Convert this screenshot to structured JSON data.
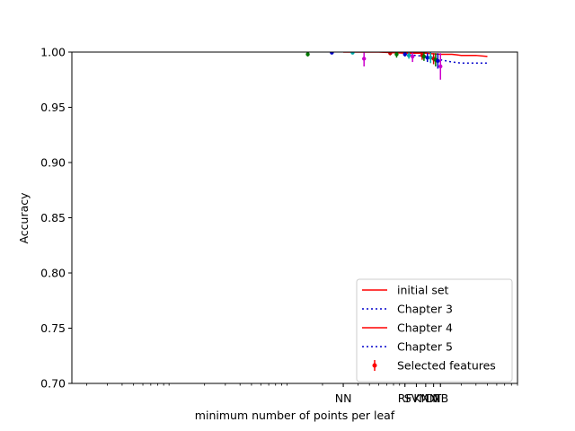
{
  "chart_data": {
    "type": "scatter",
    "title": "",
    "xlabel": "minimum number of points per leaf",
    "ylabel": "Accuracy",
    "x_scale": "log",
    "xlim": [
      0.0015,
      9
    ],
    "ylim": [
      0.7,
      1.0
    ],
    "y_ticks": [
      0.7,
      0.75,
      0.8,
      0.85,
      0.9,
      0.95,
      1.0
    ],
    "y_tick_labels": [
      "0.70",
      "0.75",
      "0.80",
      "0.85",
      "0.90",
      "0.95",
      "1.00"
    ],
    "x_ticks": [
      0.3,
      1.0,
      1.25,
      1.5,
      1.75,
      2.0
    ],
    "x_tick_labels": [
      "NN",
      "RF",
      "SVM",
      "KNN",
      "DT",
      "NB"
    ],
    "grid": false,
    "legend_position": "lower-right",
    "legend": [
      {
        "label": "initial set",
        "style": "solid",
        "color": "#ff0000",
        "kind": "line"
      },
      {
        "label": "Chapter 3",
        "style": "dotted",
        "color": "#0000cc",
        "kind": "line"
      },
      {
        "label": "Chapter 4",
        "style": "solid",
        "color": "#ff0000",
        "kind": "line"
      },
      {
        "label": "Chapter 5",
        "style": "dotted",
        "color": "#0000cc",
        "kind": "line"
      },
      {
        "label": "Selected features",
        "style": "errorbar",
        "color": "#ff0000",
        "kind": "errorbar"
      }
    ],
    "series": [
      {
        "style": "solid",
        "color": "#ff0000",
        "x": [
          0.3,
          0.6,
          1.0,
          1.5,
          2.0,
          2.5,
          3.0,
          4.0,
          5.0
        ],
        "y": [
          1.0,
          1.0,
          0.999,
          0.999,
          0.998,
          0.998,
          0.997,
          0.997,
          0.996
        ]
      },
      {
        "style": "dotted",
        "color": "#0000cc",
        "x": [
          1.0,
          1.5,
          2.0,
          2.5,
          3.0,
          5.0
        ],
        "y": [
          0.998,
          0.996,
          0.993,
          0.991,
          0.99,
          0.99
        ]
      }
    ],
    "errorbars": [
      {
        "x": 0.15,
        "y": 0.998,
        "err": 0.002,
        "color": "#007700"
      },
      {
        "x": 0.24,
        "y": 0.9995,
        "err": 0.001,
        "color": "#0000cc"
      },
      {
        "x": 0.36,
        "y": 0.9995,
        "err": 0.001,
        "color": "#00aaaa"
      },
      {
        "x": 0.45,
        "y": 0.994,
        "err": 0.007,
        "color": "#cc00cc"
      },
      {
        "x": 0.75,
        "y": 0.999,
        "err": 0.002,
        "color": "#cc0000"
      },
      {
        "x": 0.85,
        "y": 0.998,
        "err": 0.003,
        "color": "#007700"
      },
      {
        "x": 1.0,
        "y": 0.998,
        "err": 0.002,
        "color": "#0000cc"
      },
      {
        "x": 1.08,
        "y": 0.997,
        "err": 0.003,
        "color": "#00aaaa"
      },
      {
        "x": 1.16,
        "y": 0.996,
        "err": 0.005,
        "color": "#cc00cc"
      },
      {
        "x": 1.4,
        "y": 0.997,
        "err": 0.004,
        "color": "#cc0000"
      },
      {
        "x": 1.45,
        "y": 0.996,
        "err": 0.004,
        "color": "#007700"
      },
      {
        "x": 1.55,
        "y": 0.995,
        "err": 0.004,
        "color": "#0000cc"
      },
      {
        "x": 1.65,
        "y": 0.995,
        "err": 0.005,
        "color": "#00aaaa"
      },
      {
        "x": 1.75,
        "y": 0.994,
        "err": 0.005,
        "color": "#cc0000"
      },
      {
        "x": 1.82,
        "y": 0.993,
        "err": 0.006,
        "color": "#007700"
      },
      {
        "x": 1.9,
        "y": 0.992,
        "err": 0.007,
        "color": "#0000cc"
      },
      {
        "x": 2.0,
        "y": 0.987,
        "err": 0.012,
        "color": "#cc00cc"
      }
    ]
  }
}
